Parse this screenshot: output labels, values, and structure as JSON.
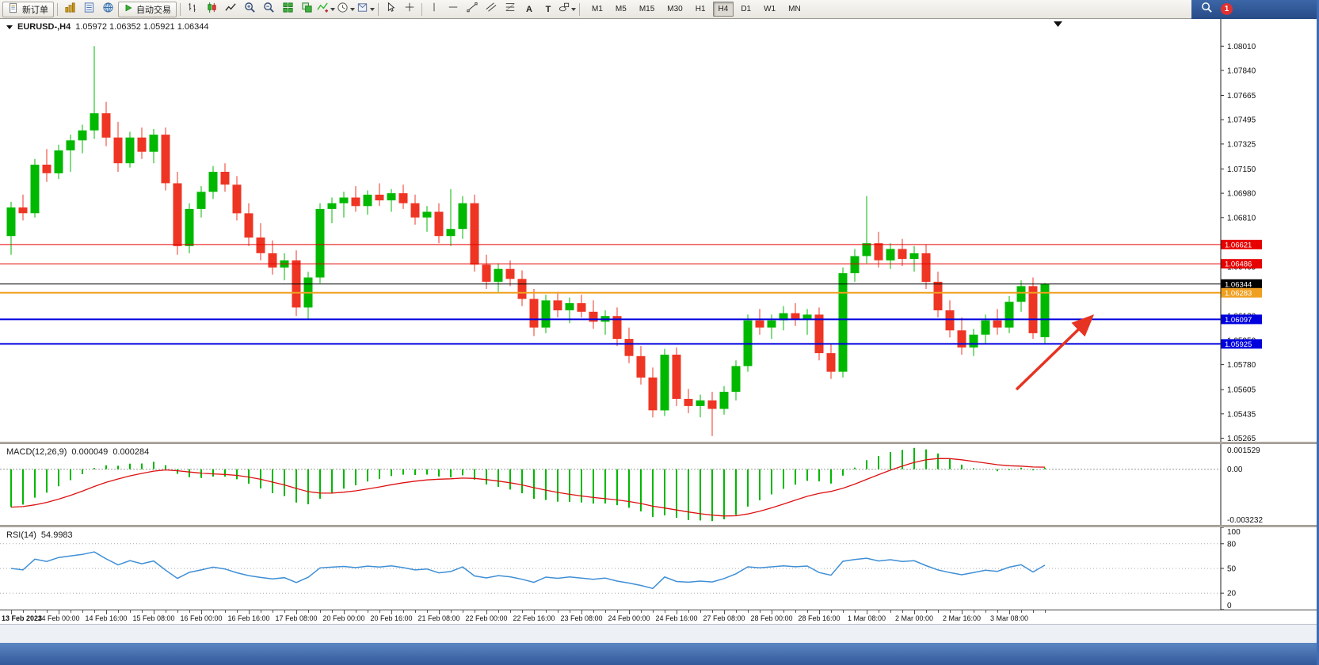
{
  "colors": {
    "up": "#00b800",
    "down": "#ee3524",
    "macd_hist": "#00b800",
    "macd_signal": "#dd1111",
    "rsi_line": "#3f8fd6",
    "arrow": "#e63322"
  },
  "icons": {
    "text_tool": "A",
    "label_tool": "T"
  },
  "toolbar": {
    "new_order_label": "新订单",
    "autotrading_label": "自动交易",
    "notification_badge": "1",
    "timeframes": [
      {
        "label": "M1",
        "active": false
      },
      {
        "label": "M5",
        "active": false
      },
      {
        "label": "M15",
        "active": false
      },
      {
        "label": "M30",
        "active": false
      },
      {
        "label": "H1",
        "active": false
      },
      {
        "label": "H4",
        "active": true
      },
      {
        "label": "D1",
        "active": false
      },
      {
        "label": "W1",
        "active": false
      },
      {
        "label": "MN",
        "active": false
      }
    ]
  },
  "chart": {
    "symbol_title": "EURUSD-,H4",
    "ohlc_text": "1.05972 1.06352 1.05921 1.06344",
    "price_axis_labels": [
      "1.08010",
      "1.07840",
      "1.07665",
      "1.07495",
      "1.07325",
      "1.07150",
      "1.06980",
      "1.06810",
      "1.06635",
      "1.06465",
      "1.06290",
      "1.06120",
      "1.05950",
      "1.05780",
      "1.05605",
      "1.05435",
      "1.05265"
    ],
    "levels": [
      {
        "name": "resistance-1",
        "price": "1.06621",
        "value": 1.06621,
        "hex": "#e60000",
        "width": 1
      },
      {
        "name": "resistance-2",
        "price": "1.06486",
        "value": 1.06486,
        "hex": "#e60000",
        "width": 1
      },
      {
        "name": "current-price",
        "price": "1.06344",
        "value": 1.06344,
        "hex": "#000000",
        "width": 1
      },
      {
        "name": "pivot",
        "price": "1.06283",
        "value": 1.06283,
        "hex": "#f0a020",
        "width": 2
      },
      {
        "name": "support-1",
        "price": "1.06097",
        "value": 1.06097,
        "hex": "#0000dd",
        "width": 2
      },
      {
        "name": "support-2",
        "price": "1.05925",
        "value": 1.05925,
        "hex": "#0000dd",
        "width": 2
      }
    ],
    "time_axis_labels": [
      "13 Feb 2023",
      "14 Feb 00:00",
      "14 Feb 16:00",
      "15 Feb 08:00",
      "16 Feb 00:00",
      "16 Feb 16:00",
      "17 Feb 08:00",
      "20 Feb 00:00",
      "20 Feb 16:00",
      "21 Feb 08:00",
      "22 Feb 00:00",
      "22 Feb 16:00",
      "23 Feb 08:00",
      "24 Feb 00:00",
      "24 Feb 16:00",
      "27 Feb 08:00",
      "28 Feb 00:00",
      "28 Feb 16:00",
      "1 Mar 08:00",
      "2 Mar 00:00",
      "2 Mar 16:00",
      "3 Mar 08:00"
    ]
  },
  "macd": {
    "title": "MACD(12,26,9)",
    "main_value": "0.000049",
    "signal_value": "0.000284",
    "axis_labels": [
      "0.001529",
      "0.00",
      "-0.003232"
    ]
  },
  "rsi": {
    "title": "RSI(14)",
    "value": "54.9983",
    "axis_labels": [
      "100",
      "80",
      "50",
      "20",
      "0"
    ],
    "axis_values": [
      100,
      80,
      50,
      20,
      0
    ],
    "levels": [
      80,
      50,
      20
    ]
  },
  "chart_data": {
    "type": "candlestick",
    "symbol": "EURUSD-",
    "timeframe": "H4",
    "current_ohlc": {
      "open": 1.05972,
      "high": 1.06352,
      "low": 1.05921,
      "close": 1.06344
    },
    "price_range": [
      1.0524,
      1.082
    ],
    "horizontal_levels": [
      1.06621,
      1.06486,
      1.06344,
      1.06283,
      1.06097,
      1.05925
    ],
    "indicator_params": {
      "macd": [
        12,
        26,
        9
      ],
      "rsi": 14
    },
    "candles": [
      [
        1.0668,
        1.0692,
        1.0655,
        1.0688
      ],
      [
        1.0688,
        1.0697,
        1.0679,
        1.0684
      ],
      [
        1.0684,
        1.0722,
        1.0681,
        1.0718
      ],
      [
        1.0718,
        1.0729,
        1.0706,
        1.0712
      ],
      [
        1.0712,
        1.0732,
        1.0708,
        1.0728
      ],
      [
        1.0728,
        1.0739,
        1.0713,
        1.0735
      ],
      [
        1.0735,
        1.0746,
        1.0726,
        1.0742
      ],
      [
        1.0742,
        1.0801,
        1.0736,
        1.0754
      ],
      [
        1.0754,
        1.0762,
        1.0731,
        1.0737
      ],
      [
        1.0737,
        1.0748,
        1.0713,
        1.0719
      ],
      [
        1.0719,
        1.0741,
        1.0716,
        1.0737
      ],
      [
        1.0737,
        1.0744,
        1.0722,
        1.0727
      ],
      [
        1.0727,
        1.0743,
        1.0719,
        1.0739
      ],
      [
        1.0739,
        1.0744,
        1.07,
        1.0705
      ],
      [
        1.0705,
        1.0713,
        1.0655,
        1.0661
      ],
      [
        1.0661,
        1.0691,
        1.0656,
        1.0687
      ],
      [
        1.0687,
        1.0703,
        1.0681,
        1.0699
      ],
      [
        1.0699,
        1.0717,
        1.0694,
        1.0713
      ],
      [
        1.0713,
        1.0719,
        1.0699,
        1.0704
      ],
      [
        1.0704,
        1.071,
        1.0679,
        1.0684
      ],
      [
        1.0684,
        1.0691,
        1.0661,
        1.0667
      ],
      [
        1.0667,
        1.0677,
        1.0651,
        1.0656
      ],
      [
        1.0656,
        1.0665,
        1.0641,
        1.0646
      ],
      [
        1.0646,
        1.0656,
        1.0637,
        1.0651
      ],
      [
        1.0651,
        1.0658,
        1.0612,
        1.0618
      ],
      [
        1.0618,
        1.0643,
        1.061,
        1.0639
      ],
      [
        1.0639,
        1.0691,
        1.0635,
        1.0687
      ],
      [
        1.0687,
        1.0695,
        1.0677,
        1.0691
      ],
      [
        1.0691,
        1.0699,
        1.0681,
        1.0695
      ],
      [
        1.0695,
        1.0703,
        1.0685,
        1.0689
      ],
      [
        1.0689,
        1.07,
        1.0683,
        1.0697
      ],
      [
        1.0697,
        1.0705,
        1.0689,
        1.0693
      ],
      [
        1.0693,
        1.0701,
        1.0685,
        1.0698
      ],
      [
        1.0698,
        1.0704,
        1.0687,
        1.0691
      ],
      [
        1.0691,
        1.0697,
        1.0676,
        1.0681
      ],
      [
        1.0681,
        1.0689,
        1.0671,
        1.0685
      ],
      [
        1.0685,
        1.0691,
        1.0663,
        1.0668
      ],
      [
        1.0668,
        1.0701,
        1.0661,
        1.0673
      ],
      [
        1.0673,
        1.0696,
        1.0666,
        1.0691
      ],
      [
        1.0691,
        1.0697,
        1.0643,
        1.0648
      ],
      [
        1.0648,
        1.0655,
        1.0631,
        1.0636
      ],
      [
        1.0636,
        1.0649,
        1.0629,
        1.0645
      ],
      [
        1.0645,
        1.0651,
        1.0633,
        1.0638
      ],
      [
        1.0638,
        1.0644,
        1.0619,
        1.0624
      ],
      [
        1.0624,
        1.0631,
        1.0598,
        1.0604
      ],
      [
        1.0604,
        1.0627,
        1.06,
        1.0623
      ],
      [
        1.0623,
        1.0629,
        1.0611,
        1.0616
      ],
      [
        1.0616,
        1.0625,
        1.0607,
        1.0621
      ],
      [
        1.0621,
        1.0627,
        1.0611,
        1.0615
      ],
      [
        1.0615,
        1.0623,
        1.0603,
        1.0608
      ],
      [
        1.0608,
        1.0616,
        1.0599,
        1.0612
      ],
      [
        1.0612,
        1.0618,
        1.0591,
        1.0596
      ],
      [
        1.0596,
        1.0604,
        1.0579,
        1.0584
      ],
      [
        1.0584,
        1.0591,
        1.0564,
        1.0569
      ],
      [
        1.0569,
        1.0576,
        1.0541,
        1.0546
      ],
      [
        1.0546,
        1.0589,
        1.0542,
        1.0585
      ],
      [
        1.0585,
        1.059,
        1.0549,
        1.0554
      ],
      [
        1.0554,
        1.0561,
        1.0544,
        1.0549
      ],
      [
        1.0549,
        1.0557,
        1.0541,
        1.0553
      ],
      [
        1.0553,
        1.0559,
        1.0528,
        1.0547
      ],
      [
        1.0547,
        1.0563,
        1.0543,
        1.0559
      ],
      [
        1.0559,
        1.0581,
        1.0553,
        1.0577
      ],
      [
        1.0577,
        1.0613,
        1.0573,
        1.0609
      ],
      [
        1.0609,
        1.0617,
        1.0599,
        1.0604
      ],
      [
        1.0604,
        1.0613,
        1.0596,
        1.0609
      ],
      [
        1.0609,
        1.0619,
        1.0602,
        1.0614
      ],
      [
        1.0614,
        1.0621,
        1.0605,
        1.061
      ],
      [
        1.061,
        1.0617,
        1.0599,
        1.0613
      ],
      [
        1.0613,
        1.0618,
        1.0581,
        1.0586
      ],
      [
        1.0586,
        1.0593,
        1.0568,
        1.0573
      ],
      [
        1.0573,
        1.0646,
        1.0569,
        1.0642
      ],
      [
        1.0642,
        1.0659,
        1.0636,
        1.0654
      ],
      [
        1.0654,
        1.0696,
        1.0649,
        1.0663
      ],
      [
        1.0663,
        1.0671,
        1.0646,
        1.0651
      ],
      [
        1.0651,
        1.0663,
        1.0645,
        1.0659
      ],
      [
        1.0659,
        1.0666,
        1.0647,
        1.0652
      ],
      [
        1.0652,
        1.0661,
        1.0643,
        1.0656
      ],
      [
        1.0656,
        1.0662,
        1.0631,
        1.0636
      ],
      [
        1.0636,
        1.0643,
        1.0611,
        1.0616
      ],
      [
        1.0616,
        1.0623,
        1.0597,
        1.0602
      ],
      [
        1.0602,
        1.0611,
        1.0585,
        1.059
      ],
      [
        1.059,
        1.0603,
        1.0584,
        1.0599
      ],
      [
        1.0599,
        1.0613,
        1.0593,
        1.0609
      ],
      [
        1.0609,
        1.0617,
        1.0599,
        1.0604
      ],
      [
        1.0604,
        1.0626,
        1.06,
        1.0622
      ],
      [
        1.0622,
        1.0637,
        1.0615,
        1.0633
      ],
      [
        1.0633,
        1.0639,
        1.0596,
        1.06
      ],
      [
        1.05972,
        1.06352,
        1.05921,
        1.06344
      ]
    ]
  }
}
